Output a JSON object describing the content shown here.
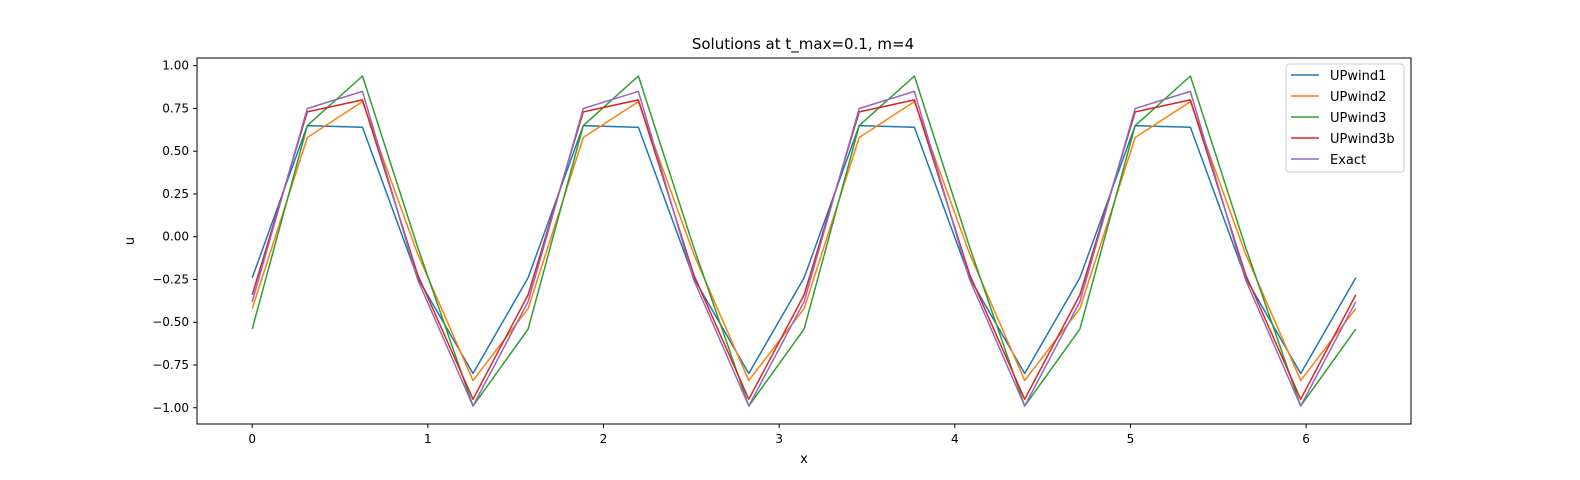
{
  "chart_data": {
    "type": "line",
    "title": "Solutions at t_max=0.1, m=4",
    "xlabel": "x",
    "ylabel": "u",
    "xlim": [
      -0.314,
      6.597
    ],
    "ylim": [
      -1.095,
      1.045
    ],
    "xticks": [
      "0",
      "1",
      "2",
      "3",
      "4",
      "5",
      "6"
    ],
    "yticks": [
      "−1.00",
      "−0.75",
      "−0.50",
      "−0.25",
      "0.00",
      "0.25",
      "0.50",
      "0.75",
      "1.00"
    ],
    "grid": false,
    "legend_position": "top-right",
    "x": [
      0,
      0.314,
      0.628,
      0.942,
      1.257,
      1.571,
      1.885,
      2.199,
      2.513,
      2.827,
      3.142,
      3.456,
      3.77,
      4.084,
      4.398,
      4.712,
      5.027,
      5.341,
      5.655,
      5.969,
      6.283
    ],
    "series": [
      {
        "name": "UPwind1",
        "color": "#1f77b4",
        "values": [
          -0.24,
          0.65,
          0.64,
          -0.24,
          -0.8,
          -0.24,
          0.65,
          0.64,
          -0.24,
          -0.8,
          -0.24,
          0.65,
          0.64,
          -0.24,
          -0.8,
          -0.24,
          0.65,
          0.64,
          -0.24,
          -0.8,
          -0.24
        ]
      },
      {
        "name": "UPwind2",
        "color": "#ff7f0e",
        "values": [
          -0.42,
          0.58,
          0.79,
          -0.1,
          -0.84,
          -0.42,
          0.58,
          0.79,
          -0.1,
          -0.84,
          -0.42,
          0.58,
          0.79,
          -0.1,
          -0.84,
          -0.42,
          0.58,
          0.79,
          -0.1,
          -0.84,
          -0.42
        ]
      },
      {
        "name": "UPwind3",
        "color": "#2ca02c",
        "values": [
          -0.54,
          0.65,
          0.94,
          -0.06,
          -0.99,
          -0.54,
          0.65,
          0.94,
          -0.06,
          -0.99,
          -0.54,
          0.65,
          0.94,
          -0.06,
          -0.99,
          -0.54,
          0.65,
          0.94,
          -0.06,
          -0.99,
          -0.54
        ]
      },
      {
        "name": "UPwind3b",
        "color": "#d62728",
        "values": [
          -0.34,
          0.73,
          0.8,
          -0.22,
          -0.95,
          -0.34,
          0.73,
          0.8,
          -0.22,
          -0.95,
          -0.34,
          0.73,
          0.8,
          -0.22,
          -0.95,
          -0.34,
          0.73,
          0.8,
          -0.22,
          -0.95,
          -0.34
        ]
      },
      {
        "name": "Exact",
        "color": "#9467bd",
        "values": [
          -0.38,
          0.75,
          0.85,
          -0.25,
          -0.99,
          -0.38,
          0.75,
          0.85,
          -0.25,
          -0.99,
          -0.38,
          0.75,
          0.85,
          -0.25,
          -0.99,
          -0.38,
          0.75,
          0.85,
          -0.25,
          -0.99,
          -0.38
        ]
      }
    ]
  }
}
